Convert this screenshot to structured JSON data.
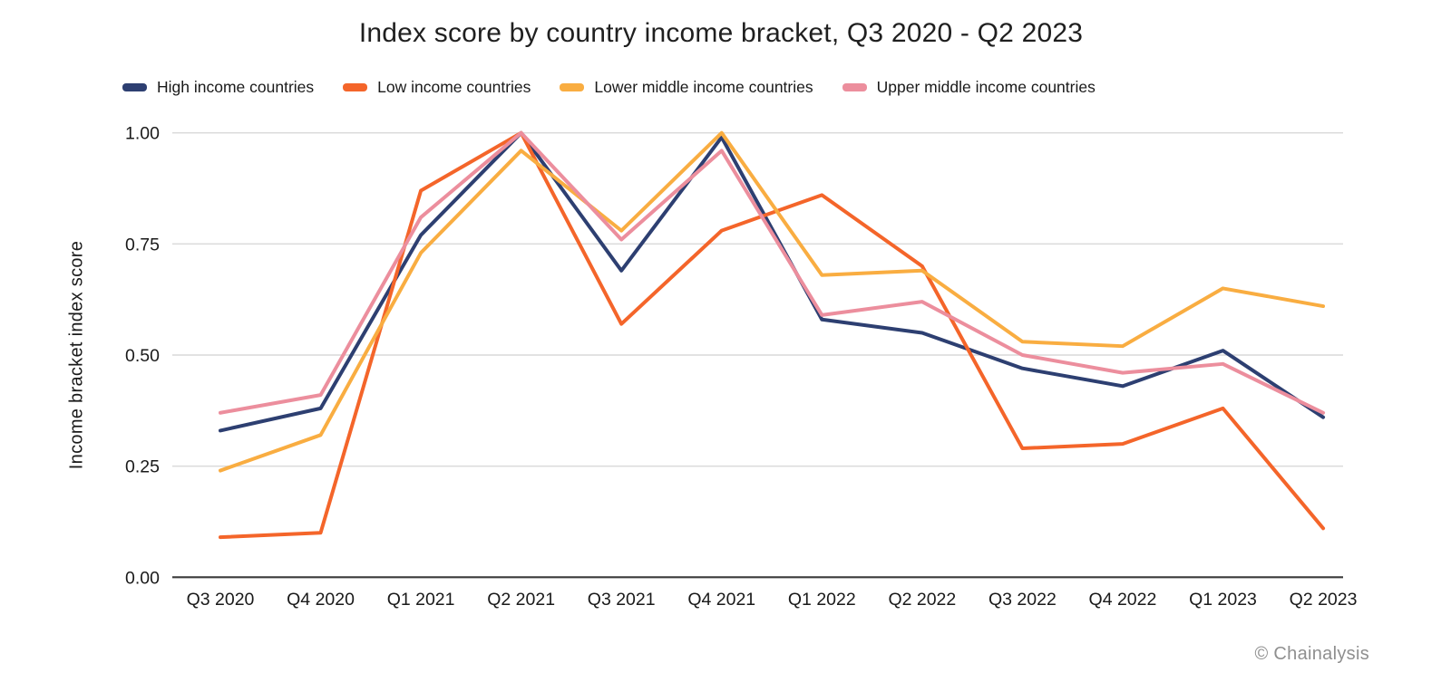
{
  "chart": {
    "title": "Index score by country income bracket, Q3 2020 - Q2 2023",
    "attribution": "© Chainalysis"
  },
  "chart_data": {
    "type": "line",
    "title": "Index score by country income bracket, Q3 2020 - Q2 2023",
    "xlabel": "",
    "ylabel": "Income bracket index score",
    "ylim": [
      0,
      1
    ],
    "yticks": [
      0,
      0.25,
      0.5,
      0.75,
      1
    ],
    "ytick_labels": [
      "0.00",
      "0.25",
      "0.50",
      "0.75",
      "1.00"
    ],
    "grid": true,
    "legend_position": "top-left",
    "categories": [
      "Q3 2020",
      "Q4 2020",
      "Q1 2021",
      "Q2 2021",
      "Q3 2021",
      "Q4 2021",
      "Q1 2022",
      "Q2 2022",
      "Q3 2022",
      "Q4 2022",
      "Q1 2023",
      "Q2 2023"
    ],
    "series": [
      {
        "name": "High income countries",
        "color": "#2d3f71",
        "values": [
          0.33,
          0.38,
          0.77,
          1.0,
          0.69,
          0.99,
          0.58,
          0.55,
          0.47,
          0.43,
          0.51,
          0.36
        ]
      },
      {
        "name": "Low income countries",
        "color": "#f4652a",
        "values": [
          0.09,
          0.1,
          0.87,
          1.0,
          0.57,
          0.78,
          0.86,
          0.7,
          0.29,
          0.3,
          0.38,
          0.11
        ]
      },
      {
        "name": "Lower middle income countries",
        "color": "#f9ad41",
        "values": [
          0.24,
          0.32,
          0.73,
          0.96,
          0.78,
          1.0,
          0.68,
          0.69,
          0.53,
          0.52,
          0.65,
          0.61
        ]
      },
      {
        "name": "Upper middle income countries",
        "color": "#ec8e9d",
        "values": [
          0.37,
          0.41,
          0.81,
          1.0,
          0.76,
          0.96,
          0.59,
          0.62,
          0.5,
          0.46,
          0.48,
          0.37
        ]
      }
    ],
    "style": {
      "gridline_color": "#d9d9d9",
      "axis_line_color": "#3a3a3a",
      "tick_label_color": "#1a1a1a",
      "line_width": 4
    }
  }
}
